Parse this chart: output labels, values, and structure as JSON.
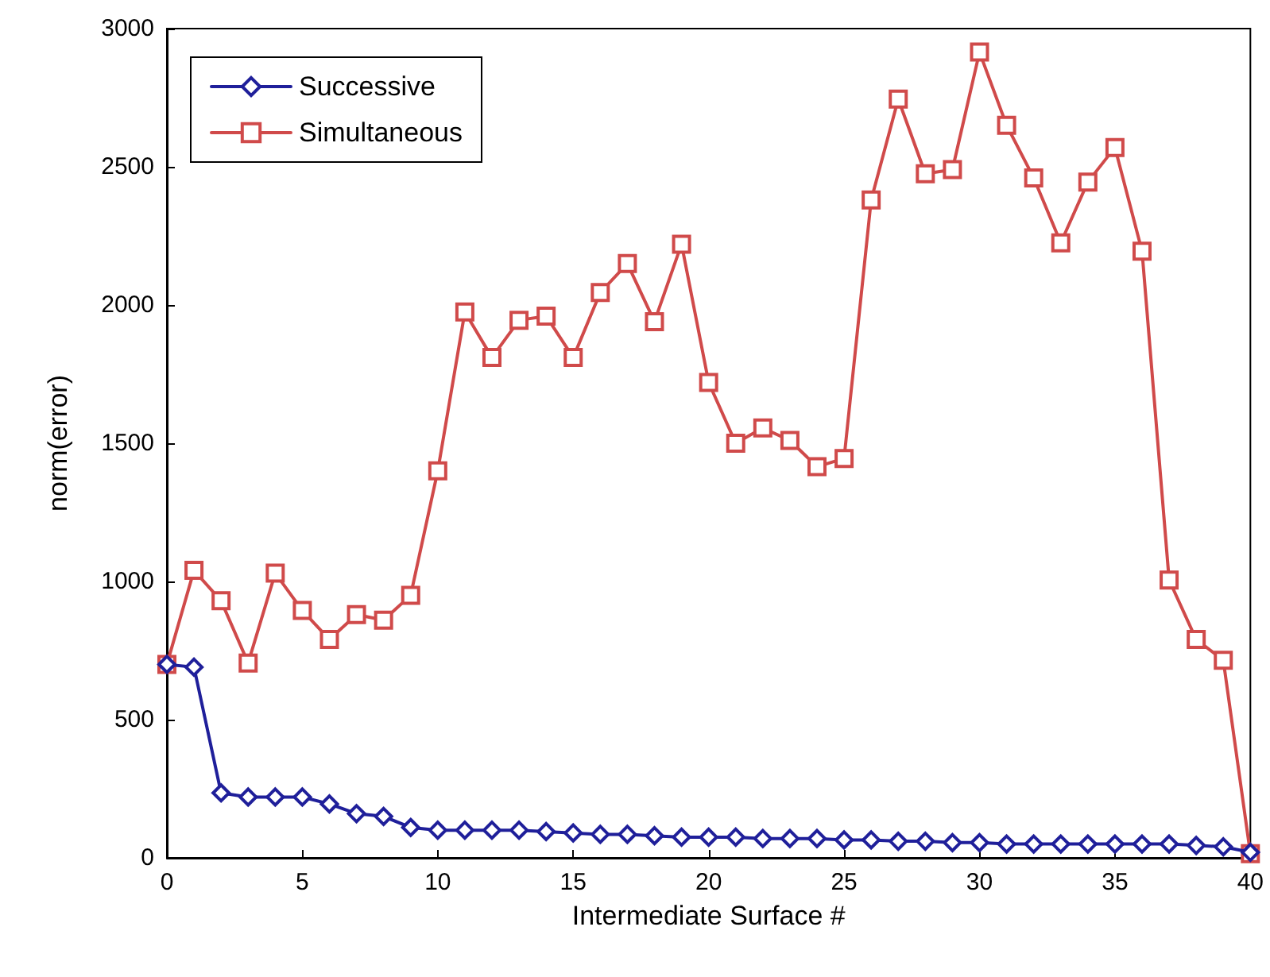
{
  "chart_data": {
    "type": "line",
    "xlabel": "Intermediate Surface #",
    "ylabel": "norm(error)",
    "x": [
      0,
      1,
      2,
      3,
      4,
      5,
      6,
      7,
      8,
      9,
      10,
      11,
      12,
      13,
      14,
      15,
      16,
      17,
      18,
      19,
      20,
      21,
      22,
      23,
      24,
      25,
      26,
      27,
      28,
      29,
      30,
      31,
      32,
      33,
      34,
      35,
      36,
      37,
      38,
      39,
      40
    ],
    "xlim": [
      0,
      40
    ],
    "xticks": [
      0,
      5,
      10,
      15,
      20,
      25,
      30,
      35,
      40
    ],
    "ylim": [
      0,
      3000
    ],
    "yticks": [
      0,
      500,
      1000,
      1500,
      2000,
      2500,
      3000
    ],
    "grid": false,
    "legend": "top left",
    "line_style": "solid",
    "series": [
      {
        "name": "Successive",
        "color": "#1f1f9a",
        "marker": "diamond",
        "values": [
          700,
          690,
          235,
          220,
          220,
          220,
          195,
          160,
          150,
          110,
          100,
          100,
          100,
          100,
          95,
          90,
          85,
          85,
          80,
          75,
          75,
          75,
          70,
          70,
          70,
          65,
          65,
          60,
          60,
          55,
          55,
          50,
          50,
          50,
          50,
          50,
          50,
          50,
          45,
          40,
          20
        ]
      },
      {
        "name": "Simultaneous",
        "color": "#d04a4a",
        "marker": "square",
        "values": [
          700,
          1040,
          930,
          705,
          1030,
          895,
          790,
          880,
          860,
          950,
          1400,
          1975,
          1810,
          1945,
          1960,
          1810,
          2045,
          2150,
          1940,
          2220,
          1720,
          1500,
          1555,
          1510,
          1415,
          1445,
          2380,
          2745,
          2475,
          2490,
          2915,
          2650,
          2460,
          2225,
          2445,
          2570,
          2195,
          1005,
          790,
          715,
          15
        ]
      }
    ]
  }
}
